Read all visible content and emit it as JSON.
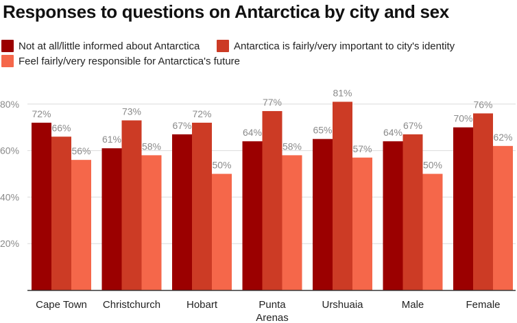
{
  "chart_data": {
    "type": "bar",
    "title": "Responses to questions on Antarctica by city and sex",
    "xlabel": "",
    "ylabel": "",
    "ylim": [
      0,
      85
    ],
    "yticks": [
      {
        "value": 20,
        "label": "20%"
      },
      {
        "value": 40,
        "label": "40%"
      },
      {
        "value": 60,
        "label": "60%"
      },
      {
        "value": 80,
        "label": "80%"
      }
    ],
    "grid": true,
    "legend_position": "top",
    "categories": [
      [
        "Cape Town"
      ],
      [
        "Christchurch"
      ],
      [
        "Hobart"
      ],
      [
        "Punta",
        "Arenas"
      ],
      [
        "Urshuaia"
      ],
      [
        "Male"
      ],
      [
        "Female"
      ]
    ],
    "series": [
      {
        "name": "Not at all/little informed about Antarctica",
        "color": "#9b0000",
        "values": [
          72,
          61,
          67,
          64,
          65,
          64,
          70
        ],
        "labels": [
          "72%",
          "61%",
          "67%",
          "64%",
          "65%",
          "64%",
          "70%"
        ]
      },
      {
        "name": "Antarctica is fairly/very important to city's identity",
        "color": "#cc3b25",
        "values": [
          66,
          73,
          72,
          77,
          81,
          67,
          76
        ],
        "labels": [
          "66%",
          "73%",
          "72%",
          "77%",
          "81%",
          "67%",
          "76%"
        ]
      },
      {
        "name": "Feel fairly/very responsible for Antarctica's future",
        "color": "#f5674a",
        "values": [
          56,
          58,
          50,
          58,
          57,
          50,
          62
        ],
        "labels": [
          "56%",
          "58%",
          "50%",
          "58%",
          "57%",
          "50%",
          "62%"
        ]
      }
    ]
  }
}
